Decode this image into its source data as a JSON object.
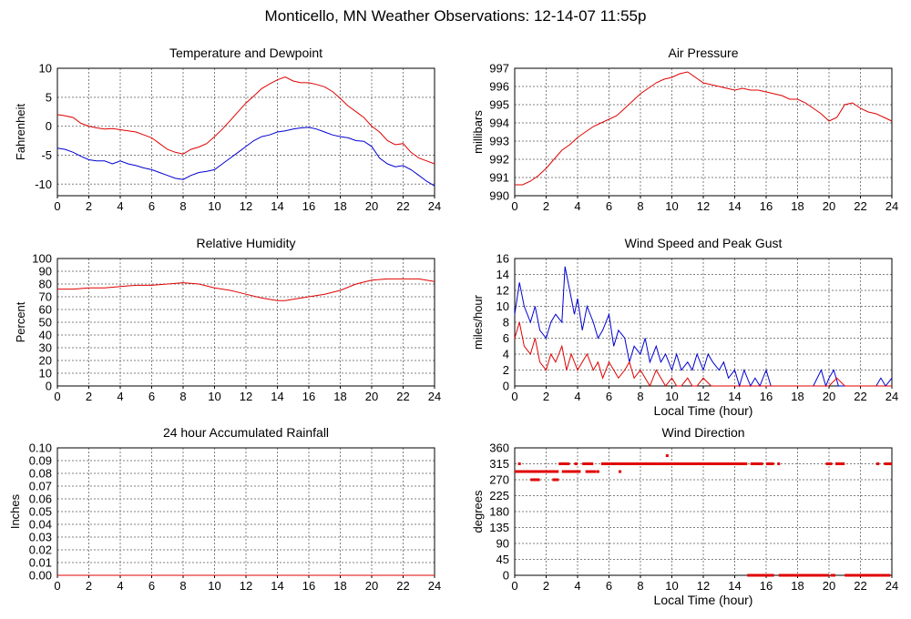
{
  "page_title": "Monticello, MN Weather Observations: 12-14-07 11:55p",
  "colors": {
    "red": "#e00000",
    "blue": "#0000d0",
    "grid": "#808080"
  },
  "chart_data": [
    {
      "id": "temp",
      "type": "line",
      "title": "Temperature and Dewpoint",
      "xlabel": "",
      "ylabel": "Fahrenheit",
      "xlim": [
        0,
        24
      ],
      "ylim": [
        -12,
        10
      ],
      "xticks": [
        0,
        2,
        4,
        6,
        8,
        10,
        12,
        14,
        16,
        18,
        20,
        22,
        24
      ],
      "yticks": [
        -10,
        -5,
        0,
        5,
        10
      ],
      "series": [
        {
          "color": "#e00000",
          "x": [
            0,
            0.5,
            1,
            1.5,
            2,
            2.5,
            3,
            3.5,
            4,
            4.5,
            5,
            5.5,
            6,
            6.5,
            7,
            7.5,
            8,
            8.5,
            9,
            9.5,
            10,
            10.5,
            11,
            11.5,
            12,
            12.5,
            13,
            13.5,
            14,
            14.5,
            15,
            15.5,
            16,
            16.5,
            17,
            17.5,
            18,
            18.5,
            19,
            19.5,
            20,
            20.5,
            21,
            21.5,
            22,
            22.5,
            23,
            23.5,
            24
          ],
          "y": [
            2,
            1.8,
            1.5,
            0.5,
            0,
            -0.3,
            -0.5,
            -0.4,
            -0.6,
            -0.8,
            -1,
            -1.5,
            -2,
            -3,
            -4,
            -4.5,
            -4.8,
            -4,
            -3.6,
            -3,
            -1.8,
            -0.5,
            1,
            2.5,
            4,
            5.2,
            6.5,
            7.3,
            8,
            8.5,
            7.8,
            7.5,
            7.5,
            7.2,
            6.8,
            6,
            4.8,
            3.5,
            2.5,
            1.5,
            0,
            -1,
            -2.5,
            -3.2,
            -3,
            -4.5,
            -5.5,
            -6,
            -6.5
          ]
        },
        {
          "color": "#0000d0",
          "x": [
            0,
            0.5,
            1,
            1.5,
            2,
            2.5,
            3,
            3.5,
            4,
            4.5,
            5,
            5.5,
            6,
            6.5,
            7,
            7.5,
            8,
            8.5,
            9,
            9.5,
            10,
            10.5,
            11,
            11.5,
            12,
            12.5,
            13,
            13.5,
            14,
            14.5,
            15,
            15.5,
            16,
            16.5,
            17,
            17.5,
            18,
            18.5,
            19,
            19.5,
            20,
            20.5,
            21,
            21.5,
            22,
            22.5,
            23,
            23.5,
            24
          ],
          "y": [
            -3.8,
            -4,
            -4.5,
            -5.2,
            -5.8,
            -6,
            -6,
            -6.5,
            -6,
            -6.5,
            -6.8,
            -7.2,
            -7.5,
            -8,
            -8.5,
            -9,
            -9.2,
            -8.5,
            -8,
            -7.8,
            -7.5,
            -6.5,
            -5.5,
            -4.5,
            -3.5,
            -2.5,
            -1.8,
            -1.5,
            -1,
            -0.8,
            -0.5,
            -0.3,
            -0.2,
            -0.5,
            -1,
            -1.5,
            -1.8,
            -2,
            -2.5,
            -2.6,
            -3.5,
            -5.5,
            -6.5,
            -7,
            -6.8,
            -7.5,
            -8.5,
            -9.5,
            -10.3
          ]
        }
      ]
    },
    {
      "id": "pressure",
      "type": "line",
      "title": "Air Pressure",
      "xlabel": "",
      "ylabel": "millibars",
      "xlim": [
        0,
        24
      ],
      "ylim": [
        990,
        997
      ],
      "xticks": [
        0,
        2,
        4,
        6,
        8,
        10,
        12,
        14,
        16,
        18,
        20,
        22,
        24
      ],
      "yticks": [
        990,
        991,
        992,
        993,
        994,
        995,
        996,
        997
      ],
      "series": [
        {
          "color": "#e00000",
          "x": [
            0,
            0.5,
            1,
            1.5,
            2,
            2.5,
            3,
            3.5,
            4,
            4.5,
            5,
            5.5,
            6,
            6.5,
            7,
            7.5,
            8,
            8.5,
            9,
            9.5,
            10,
            10.5,
            11,
            11.5,
            12,
            12.5,
            13,
            13.5,
            14,
            14.5,
            15,
            15.5,
            16,
            16.5,
            17,
            17.5,
            18,
            18.5,
            19,
            19.5,
            20,
            20.5,
            21,
            21.5,
            22,
            22.5,
            23,
            23.5,
            24
          ],
          "y": [
            990.6,
            990.6,
            990.8,
            991.1,
            991.5,
            992,
            992.5,
            992.8,
            993.2,
            993.5,
            993.8,
            994,
            994.2,
            994.4,
            994.8,
            995.2,
            995.6,
            995.9,
            996.2,
            996.4,
            996.5,
            996.7,
            996.8,
            996.5,
            996.2,
            996.1,
            996,
            995.9,
            995.8,
            995.9,
            995.8,
            995.8,
            995.7,
            995.6,
            995.5,
            995.3,
            995.3,
            995.1,
            994.8,
            994.5,
            994.1,
            994.3,
            995,
            995.1,
            994.8,
            994.6,
            994.5,
            994.3,
            994.1
          ]
        }
      ]
    },
    {
      "id": "humidity",
      "type": "line",
      "title": "Relative Humidity",
      "xlabel": "",
      "ylabel": "Percent",
      "xlim": [
        0,
        24
      ],
      "ylim": [
        0,
        100
      ],
      "xticks": [
        0,
        2,
        4,
        6,
        8,
        10,
        12,
        14,
        16,
        18,
        20,
        22,
        24
      ],
      "yticks": [
        0,
        10,
        20,
        30,
        40,
        50,
        60,
        70,
        80,
        90,
        100
      ],
      "series": [
        {
          "color": "#e00000",
          "x": [
            0,
            1,
            2,
            3,
            4,
            5,
            6,
            7,
            8,
            9,
            10,
            11,
            12,
            13,
            14,
            14.5,
            15,
            16,
            17,
            18,
            19,
            20,
            21,
            22,
            23,
            24
          ],
          "y": [
            76,
            76,
            77,
            77,
            78,
            79,
            79,
            80,
            81,
            80,
            77,
            75,
            72,
            69,
            67,
            67,
            68,
            70,
            72,
            75,
            80,
            83,
            84,
            84,
            84,
            82
          ]
        }
      ]
    },
    {
      "id": "wind",
      "type": "line",
      "title": "Wind Speed and Peak Gust",
      "xlabel": "Local Time (hour)",
      "ylabel": "miles/hour",
      "xlim": [
        0,
        24
      ],
      "ylim": [
        0,
        16
      ],
      "xticks": [
        0,
        2,
        4,
        6,
        8,
        10,
        12,
        14,
        16,
        18,
        20,
        22,
        24
      ],
      "yticks": [
        0,
        2,
        4,
        6,
        8,
        10,
        12,
        14,
        16
      ],
      "series": [
        {
          "color": "#0000d0",
          "x": [
            0,
            0.3,
            0.6,
            1,
            1.3,
            1.6,
            2,
            2.3,
            2.6,
            3,
            3.2,
            3.5,
            3.8,
            4,
            4.3,
            4.6,
            5,
            5.3,
            5.6,
            6,
            6.3,
            6.6,
            7,
            7.3,
            7.6,
            8,
            8.3,
            8.6,
            9,
            9.3,
            9.6,
            10,
            10.3,
            10.6,
            11,
            11.3,
            11.6,
            12,
            12.3,
            12.6,
            13,
            13.3,
            13.6,
            14,
            14.3,
            14.6,
            15,
            15.3,
            15.6,
            16,
            16.3,
            16.6,
            17,
            18,
            19,
            19.5,
            19.8,
            20,
            20.3,
            20.6,
            21,
            22,
            23,
            23.3,
            23.6,
            24
          ],
          "y": [
            9,
            13,
            10,
            8,
            10,
            7,
            6,
            8,
            9,
            8,
            15,
            12,
            9,
            11,
            7,
            10,
            8,
            6,
            7,
            9,
            5,
            7,
            6,
            3,
            5,
            4,
            6,
            3,
            5,
            3,
            4,
            2,
            4,
            2,
            3,
            2,
            4,
            2,
            4,
            3,
            2,
            3,
            1,
            2,
            0,
            2,
            0,
            1,
            0,
            2,
            0,
            0,
            0,
            0,
            0,
            2,
            0,
            1,
            2,
            0,
            0,
            0,
            0,
            1,
            0,
            1
          ]
        },
        {
          "color": "#e00000",
          "x": [
            0,
            0.3,
            0.6,
            1,
            1.3,
            1.6,
            2,
            2.3,
            2.6,
            3,
            3.3,
            3.6,
            4,
            4.3,
            4.6,
            5,
            5.3,
            5.6,
            6,
            6.3,
            6.6,
            7,
            7.3,
            7.6,
            8,
            8.3,
            8.6,
            9,
            9.3,
            9.6,
            10,
            10.3,
            10.6,
            11,
            11.3,
            11.6,
            12,
            12.5,
            13,
            13.5,
            14,
            15,
            16,
            17,
            18,
            19,
            20,
            20.5,
            21,
            22,
            23,
            24
          ],
          "y": [
            6,
            8,
            5,
            4,
            6,
            3,
            2,
            4,
            3,
            5,
            2,
            4,
            2,
            3,
            4,
            2,
            3,
            1,
            3,
            2,
            1,
            2,
            3,
            1,
            2,
            1,
            0,
            2,
            1,
            0,
            1,
            0,
            0,
            1,
            0,
            0,
            1,
            0,
            0,
            0,
            0,
            0,
            0,
            0,
            0,
            0,
            0,
            1,
            0,
            0,
            0,
            0
          ]
        }
      ]
    },
    {
      "id": "rain",
      "type": "line",
      "title": "24 hour Accumulated Rainfall",
      "xlabel": "",
      "ylabel": "Inches",
      "xlim": [
        0,
        24
      ],
      "ylim": [
        0,
        0.1
      ],
      "xticks": [
        0,
        2,
        4,
        6,
        8,
        10,
        12,
        14,
        16,
        18,
        20,
        22,
        24
      ],
      "yticks": [
        "0.00",
        "0.01",
        "0.02",
        "0.03",
        "0.04",
        "0.05",
        "0.06",
        "0.07",
        "0.08",
        "0.09",
        "0.10"
      ],
      "series": [
        {
          "color": "#e00000",
          "x": [
            0,
            24
          ],
          "y": [
            0,
            0
          ]
        }
      ]
    },
    {
      "id": "direction",
      "type": "scatter",
      "title": "Wind Direction",
      "xlabel": "Local Time (hour)",
      "ylabel": "degrees",
      "xlim": [
        0,
        24
      ],
      "ylim": [
        0,
        360
      ],
      "xticks": [
        0,
        2,
        4,
        6,
        8,
        10,
        12,
        14,
        16,
        18,
        20,
        22,
        24
      ],
      "yticks": [
        0,
        45,
        90,
        135,
        180,
        225,
        270,
        315,
        360
      ],
      "segments": [
        {
          "x1": 0,
          "x2": 2.8,
          "y": 293
        },
        {
          "x1": 1.0,
          "x2": 1.6,
          "y": 270
        },
        {
          "x1": 2.4,
          "x2": 2.8,
          "y": 270
        },
        {
          "x1": 2.8,
          "x2": 3.5,
          "y": 315
        },
        {
          "x1": 3.0,
          "x2": 4.2,
          "y": 293
        },
        {
          "x1": 4.5,
          "x2": 5.2,
          "y": 293
        },
        {
          "x1": 3.8,
          "x2": 4.0,
          "y": 315
        },
        {
          "x1": 4.3,
          "x2": 5.0,
          "y": 315
        },
        {
          "x1": 5.5,
          "x2": 14.8,
          "y": 315
        },
        {
          "x1": 15.0,
          "x2": 15.8,
          "y": 315
        },
        {
          "x1": 16.0,
          "x2": 16.5,
          "y": 315
        },
        {
          "x1": 19.8,
          "x2": 20.2,
          "y": 315
        },
        {
          "x1": 20.4,
          "x2": 21.0,
          "y": 315
        },
        {
          "x1": 23.0,
          "x2": 23.2,
          "y": 315
        },
        {
          "x1": 23.5,
          "x2": 24,
          "y": 315
        },
        {
          "x1": 14.8,
          "x2": 16.5,
          "y": 0
        },
        {
          "x1": 16.8,
          "x2": 20.0,
          "y": 0
        },
        {
          "x1": 20.1,
          "x2": 20.4,
          "y": 0
        },
        {
          "x1": 21.0,
          "x2": 23.9,
          "y": 0
        }
      ],
      "points": [
        {
          "x": 0.3,
          "y": 315
        },
        {
          "x": 5.3,
          "y": 293
        },
        {
          "x": 6.7,
          "y": 293
        },
        {
          "x": 9.7,
          "y": 338
        },
        {
          "x": 16.8,
          "y": 315
        }
      ]
    }
  ]
}
